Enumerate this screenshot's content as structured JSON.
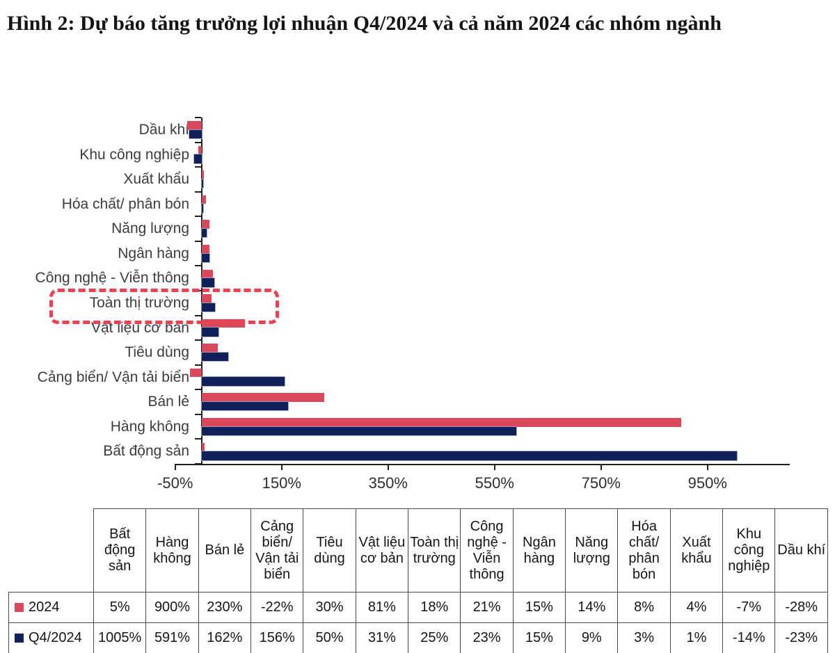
{
  "page": {
    "title": "Hình 2: Dự báo tăng trưởng lợi nhuận Q4/2024 và cả năm 2024 các nhóm ngành"
  },
  "chart_data": {
    "type": "bar",
    "orientation": "horizontal",
    "grid": false,
    "categories": [
      "Dầu khí",
      "Khu công nghiệp",
      "Xuất khẩu",
      "Hóa chất/ phân bón",
      "Năng lượng",
      "Ngân hàng",
      "Công nghệ - Viễn thông",
      "Toàn thị trường",
      "Vật liệu cơ bản",
      "Tiêu dùng",
      "Cảng biển/ Vận tải biển",
      "Bán lẻ",
      "Hàng không",
      "Bất động sản"
    ],
    "series": [
      {
        "name": "2024",
        "color": "#d9495b",
        "values_pct": [
          -28,
          -7,
          4,
          8,
          14,
          15,
          21,
          18,
          81,
          30,
          -22,
          230,
          900,
          5
        ]
      },
      {
        "name": "Q4/2024",
        "color": "#12205a",
        "values_pct": [
          -23,
          -14,
          1,
          3,
          9,
          15,
          23,
          25,
          31,
          50,
          156,
          162,
          591,
          1005
        ]
      }
    ],
    "x_axis": {
      "unit": "%",
      "min": -50,
      "max": 1105,
      "ticks": [
        -50,
        150,
        350,
        550,
        750,
        950
      ],
      "tick_labels": [
        "-50%",
        "150%",
        "350%",
        "550%",
        "750%",
        "950%"
      ]
    },
    "highlight": {
      "category": "Toàn thị trường",
      "style": "dashed-rounded-box",
      "color": "#ee4050"
    }
  },
  "table": {
    "columns": [
      "Bất động sản",
      "Hàng không",
      "Bán lẻ",
      "Cảng biển/ Vận tải biển",
      "Tiêu dùng",
      "Vật liệu cơ bản",
      "Toàn thị trường",
      "Công nghệ - Viễn thông",
      "Ngân hàng",
      "Năng lượng",
      "Hóa chất/ phân bón",
      "Xuất khẩu",
      "Khu công nghiệp",
      "Dầu khí"
    ],
    "rows": [
      {
        "label": "2024",
        "swatch_color": "#d9495b",
        "values": [
          "5%",
          "900%",
          "230%",
          "-22%",
          "30%",
          "81%",
          "18%",
          "21%",
          "15%",
          "14%",
          "8%",
          "4%",
          "-7%",
          "-28%"
        ]
      },
      {
        "label": "Q4/2024",
        "swatch_color": "#12205a",
        "values": [
          "1005%",
          "591%",
          "162%",
          "156%",
          "50%",
          "31%",
          "25%",
          "23%",
          "15%",
          "9%",
          "3%",
          "1%",
          "-14%",
          "-23%"
        ]
      }
    ]
  }
}
